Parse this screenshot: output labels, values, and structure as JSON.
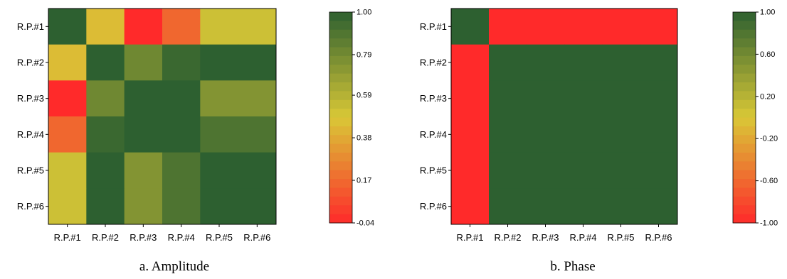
{
  "chart_data": [
    {
      "type": "heatmap",
      "caption": "a. Amplitude",
      "title": "",
      "xlabel": "",
      "ylabel": "",
      "x_categories": [
        "R.P.#1",
        "R.P.#2",
        "R.P.#3",
        "R.P.#4",
        "R.P.#5",
        "R.P.#6"
      ],
      "y_categories": [
        "R.P.#1",
        "R.P.#2",
        "R.P.#3",
        "R.P.#4",
        "R.P.#5",
        "R.P.#6"
      ],
      "values": [
        [
          1.0,
          0.44,
          -0.04,
          0.16,
          0.52,
          0.52
        ],
        [
          0.44,
          1.0,
          0.8,
          0.96,
          1.0,
          1.0
        ],
        [
          -0.04,
          0.8,
          1.0,
          1.0,
          0.74,
          0.74
        ],
        [
          0.16,
          0.96,
          1.0,
          1.0,
          0.9,
          0.9
        ],
        [
          0.52,
          1.0,
          0.74,
          0.9,
          1.0,
          1.0
        ],
        [
          0.52,
          1.0,
          0.74,
          0.9,
          1.0,
          1.0
        ]
      ],
      "color_range": [
        -0.04,
        1.0
      ],
      "colorbar": {
        "ticks": [
          1.0,
          0.79,
          0.59,
          0.38,
          0.17,
          -0.04
        ],
        "tick_labels": [
          "1.00",
          "0.79",
          "0.59",
          "0.38",
          "0.17",
          "-0.04"
        ],
        "steps": 24
      },
      "colors": {
        "low": "#ff2a2a",
        "mid": "#d9c836",
        "high": "#2d6030"
      },
      "grid": false,
      "legend": "right"
    },
    {
      "type": "heatmap",
      "caption": "b. Phase",
      "title": "",
      "xlabel": "",
      "ylabel": "",
      "x_categories": [
        "R.P.#1",
        "R.P.#2",
        "R.P.#3",
        "R.P.#4",
        "R.P.#5",
        "R.P.#6"
      ],
      "y_categories": [
        "R.P.#1",
        "R.P.#2",
        "R.P.#3",
        "R.P.#4",
        "R.P.#5",
        "R.P.#6"
      ],
      "values": [
        [
          1,
          -1,
          -1,
          -1,
          -1,
          -1
        ],
        [
          -1,
          1,
          1,
          1,
          1,
          1
        ],
        [
          -1,
          1,
          1,
          1,
          1,
          1
        ],
        [
          -1,
          1,
          1,
          1,
          1,
          1
        ],
        [
          -1,
          1,
          1,
          1,
          1,
          1
        ],
        [
          -1,
          1,
          1,
          1,
          1,
          1
        ]
      ],
      "color_range": [
        -1.0,
        1.0
      ],
      "colorbar": {
        "ticks": [
          1.0,
          0.6,
          0.2,
          -0.2,
          -0.6,
          -1.0
        ],
        "tick_labels": [
          "1.00",
          "0.60",
          "0.20",
          "-0.20",
          "-0.60",
          "-1.00"
        ],
        "steps": 24
      },
      "colors": {
        "low": "#ff2a2a",
        "mid": "#d9c836",
        "high": "#2d6030"
      },
      "grid": false,
      "legend": "right"
    }
  ]
}
